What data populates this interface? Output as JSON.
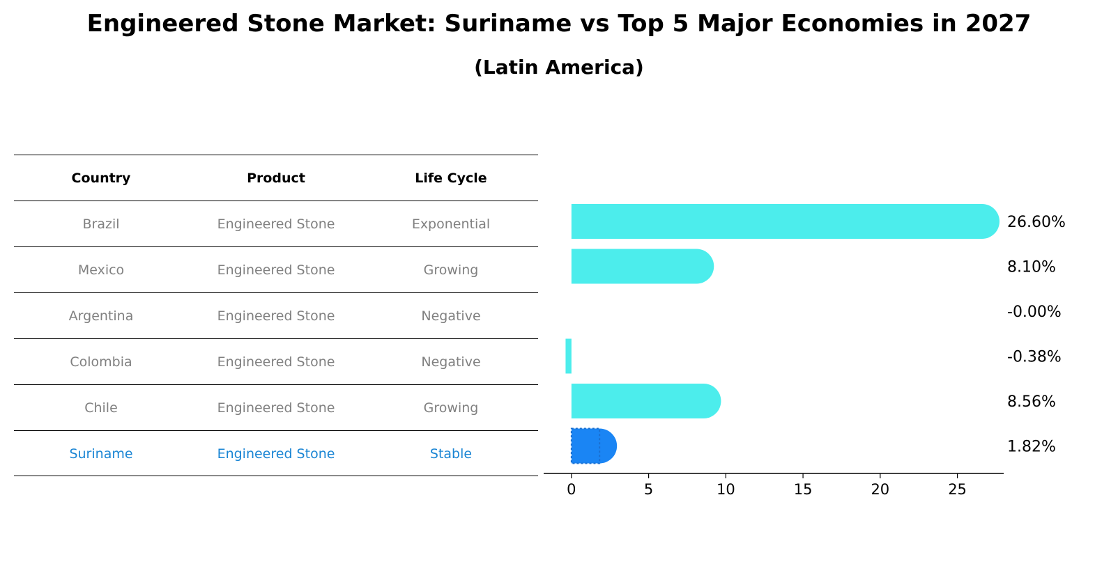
{
  "title": "Engineered Stone Market: Suriname vs Top 5 Major Economies in 2027",
  "subtitle": "(Latin America)",
  "table": {
    "headers": [
      "Country",
      "Product",
      "Life Cycle"
    ],
    "rows": [
      [
        "Brazil",
        "Engineered Stone",
        "Exponential"
      ],
      [
        "Mexico",
        "Engineered Stone",
        "Growing"
      ],
      [
        "Argentina",
        "Engineered Stone",
        "Negative"
      ],
      [
        "Colombia",
        "Engineered Stone",
        "Negative"
      ],
      [
        "Chile",
        "Engineered Stone",
        "Growing"
      ],
      [
        "Suriname",
        "Engineered Stone",
        "Stable"
      ]
    ],
    "highlight_row": 5
  },
  "colors": {
    "bar": "#4cedec",
    "highlight_bar": "#1a85f4",
    "highlight_text": "#1a85d4",
    "muted_text": "#808080"
  },
  "chart_data": {
    "type": "bar",
    "orientation": "horizontal",
    "categories": [
      "Brazil",
      "Mexico",
      "Argentina",
      "Colombia",
      "Chile",
      "Suriname"
    ],
    "values": [
      26.6,
      8.1,
      -0.0,
      -0.38,
      8.56,
      1.82
    ],
    "value_labels": [
      "26.60%",
      "8.10%",
      "-0.00%",
      "-0.38%",
      "8.56%",
      "1.82%"
    ],
    "xlim": [
      -1.8,
      28
    ],
    "xticks": [
      0,
      5,
      10,
      15,
      20,
      25
    ],
    "highlight_index": 5,
    "grid": false
  }
}
